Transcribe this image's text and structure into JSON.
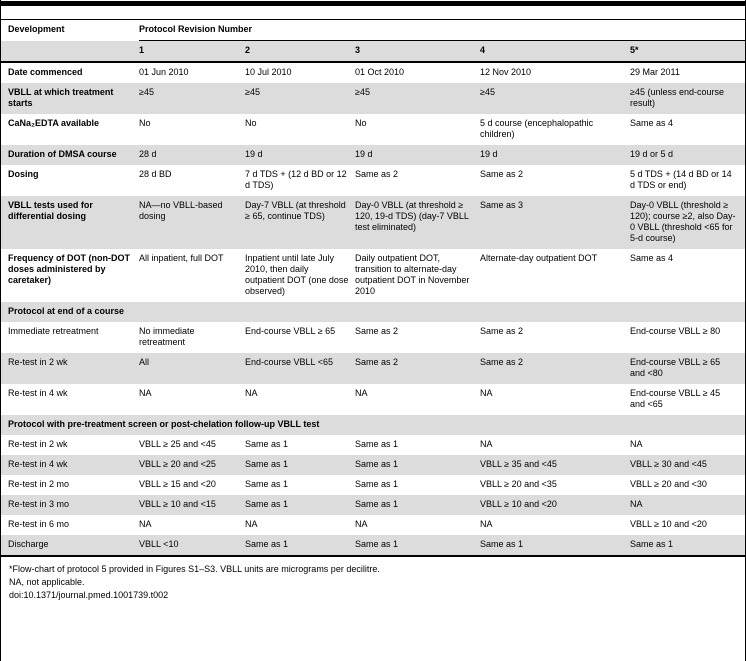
{
  "header": {
    "dev_label": "Development",
    "group_label": "Protocol Revision Number",
    "revisions": [
      "1",
      "2",
      "3",
      "4",
      "5*"
    ]
  },
  "rows": [
    {
      "label": "Date commenced",
      "cells": [
        "01 Jun 2010",
        "10 Jul 2010",
        "01 Oct 2010",
        "12 Nov 2010",
        "29 Mar 2011"
      ]
    },
    {
      "label": "VBLL at which treatment starts",
      "cells": [
        "≥45",
        "≥45",
        "≥45",
        "≥45",
        "≥45 (unless end-course result)"
      ]
    },
    {
      "label": "CaNa₂EDTA available",
      "cells": [
        "No",
        "No",
        "No",
        "5 d course (encephalopathic children)",
        "Same as 4"
      ]
    },
    {
      "label": "Duration of DMSA course",
      "cells": [
        "28 d",
        "19 d",
        "19 d",
        "19 d",
        "19 d or 5 d"
      ]
    },
    {
      "label": "Dosing",
      "cells": [
        "28 d BD",
        "7 d TDS + (12 d BD or 12 d TDS)",
        "Same as 2",
        "Same as 2",
        "5 d TDS + (14 d BD or 14 d TDS or end)"
      ]
    },
    {
      "label": "VBLL tests used for differential dosing",
      "cells": [
        "NA—no VBLL-based dosing",
        "Day-7 VBLL (at threshold ≥ 65, continue TDS)",
        "Day-0 VBLL (at threshold ≥ 120, 19-d TDS) (day-7 VBLL test eliminated)",
        "Same as 3",
        "Day-0 VBLL (threshold ≥ 120); course ≥2, also Day-0 VBLL (threshold <65 for 5-d course)"
      ]
    },
    {
      "label": "Frequency of DOT (non-DOT doses administered by caretaker)",
      "cells": [
        "All inpatient, full DOT",
        "Inpatient until late July 2010, then daily outpatient DOT (one dose observed)",
        "Daily outpatient DOT, transition to alternate-day outpatient DOT in November 2010",
        "Alternate-day outpatient DOT",
        "Same as 4"
      ]
    },
    {
      "section": true,
      "label": "Protocol at end of a course"
    },
    {
      "label": "Immediate retreatment",
      "cells": [
        "No immediate retreatment",
        "End-course VBLL ≥ 65",
        "Same as 2",
        "Same as 2",
        "End-course VBLL ≥ 80"
      ]
    },
    {
      "label": "Re-test in 2 wk",
      "cells": [
        "All",
        "End-course VBLL <65",
        "Same as 2",
        "Same as 2",
        "End-course VBLL ≥ 65 and <80"
      ]
    },
    {
      "label": "Re-test in 4 wk",
      "cells": [
        "NA",
        "NA",
        "NA",
        "NA",
        "End-course VBLL ≥ 45 and <65"
      ]
    },
    {
      "section": true,
      "label": "Protocol with pre-treatment screen or post-chelation follow-up VBLL test"
    },
    {
      "label": "Re-test in 2 wk",
      "cells": [
        "VBLL ≥ 25 and <45",
        "Same as 1",
        "Same as 1",
        "NA",
        "NA"
      ]
    },
    {
      "label": "Re-test in 4 wk",
      "cells": [
        "VBLL ≥ 20 and <25",
        "Same as 1",
        "Same as 1",
        "VBLL ≥ 35 and <45",
        "VBLL ≥ 30 and <45"
      ]
    },
    {
      "label": "Re-test in 2 mo",
      "cells": [
        "VBLL ≥ 15 and <20",
        "Same as 1",
        "Same as 1",
        "VBLL ≥ 20 and <35",
        "VBLL ≥ 20 and <30"
      ]
    },
    {
      "label": "Re-test in 3 mo",
      "cells": [
        "VBLL ≥ 10 and <15",
        "Same as 1",
        "Same as 1",
        "VBLL ≥ 10 and <20",
        "NA"
      ]
    },
    {
      "label": "Re-test in 6 mo",
      "cells": [
        "NA",
        "NA",
        "NA",
        "NA",
        "VBLL ≥ 10 and <20"
      ]
    },
    {
      "label": "Discharge",
      "cells": [
        "VBLL <10",
        "Same as 1",
        "Same as 1",
        "Same as 1",
        "Same as 1"
      ]
    }
  ],
  "footnotes": {
    "line1": "*Flow-chart of protocol 5 provided in Figures S1–S3. VBLL units are micrograms per decilitre.",
    "line2": "NA, not applicable.",
    "line3": "doi:10.1371/journal.pmed.1001739.t002"
  },
  "colors": {
    "row_shade": "#dcdcdc",
    "rule": "#000000",
    "background": "#ffffff"
  }
}
